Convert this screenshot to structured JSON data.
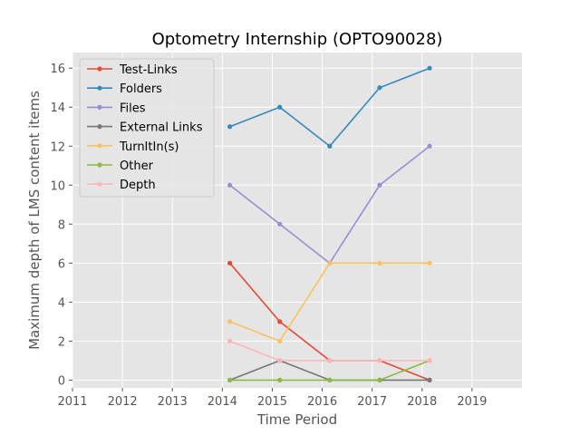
{
  "chart_data": {
    "type": "line",
    "title": "Optometry Internship (OPTO90028)",
    "xlabel": "Time Period",
    "ylabel": "Maximum depth of LMS content items",
    "xlim": [
      2011,
      2020
    ],
    "ylim": [
      -0.4,
      16.8
    ],
    "x_ticks": [
      "2011",
      "2012",
      "2013",
      "2014",
      "2015",
      "2016",
      "2017",
      "2018",
      "2019"
    ],
    "y_ticks": [
      "0",
      "2",
      "4",
      "6",
      "8",
      "10",
      "12",
      "14",
      "16"
    ],
    "grid": true,
    "legend_position": "top-left",
    "x": [
      2014.15,
      2015.15,
      2016.15,
      2017.15,
      2018.15
    ],
    "series": [
      {
        "name": "Test-Links",
        "color": "#e24a33",
        "values": [
          6,
          3,
          1,
          1,
          0
        ]
      },
      {
        "name": "Folders",
        "color": "#348abd",
        "values": [
          13,
          14,
          12,
          15,
          16
        ]
      },
      {
        "name": "Files",
        "color": "#988ed5",
        "values": [
          10,
          8,
          6,
          10,
          12
        ]
      },
      {
        "name": "External Links",
        "color": "#777777",
        "values": [
          0,
          1,
          0,
          0,
          0
        ]
      },
      {
        "name": "TurnItIn(s)",
        "color": "#fbc15e",
        "values": [
          3,
          2,
          6,
          6,
          6
        ]
      },
      {
        "name": "Other",
        "color": "#8eba42",
        "values": [
          0,
          0,
          0,
          0,
          1
        ]
      },
      {
        "name": "Depth",
        "color": "#ffb5b8",
        "values": [
          2,
          1,
          1,
          1,
          1
        ]
      }
    ]
  }
}
